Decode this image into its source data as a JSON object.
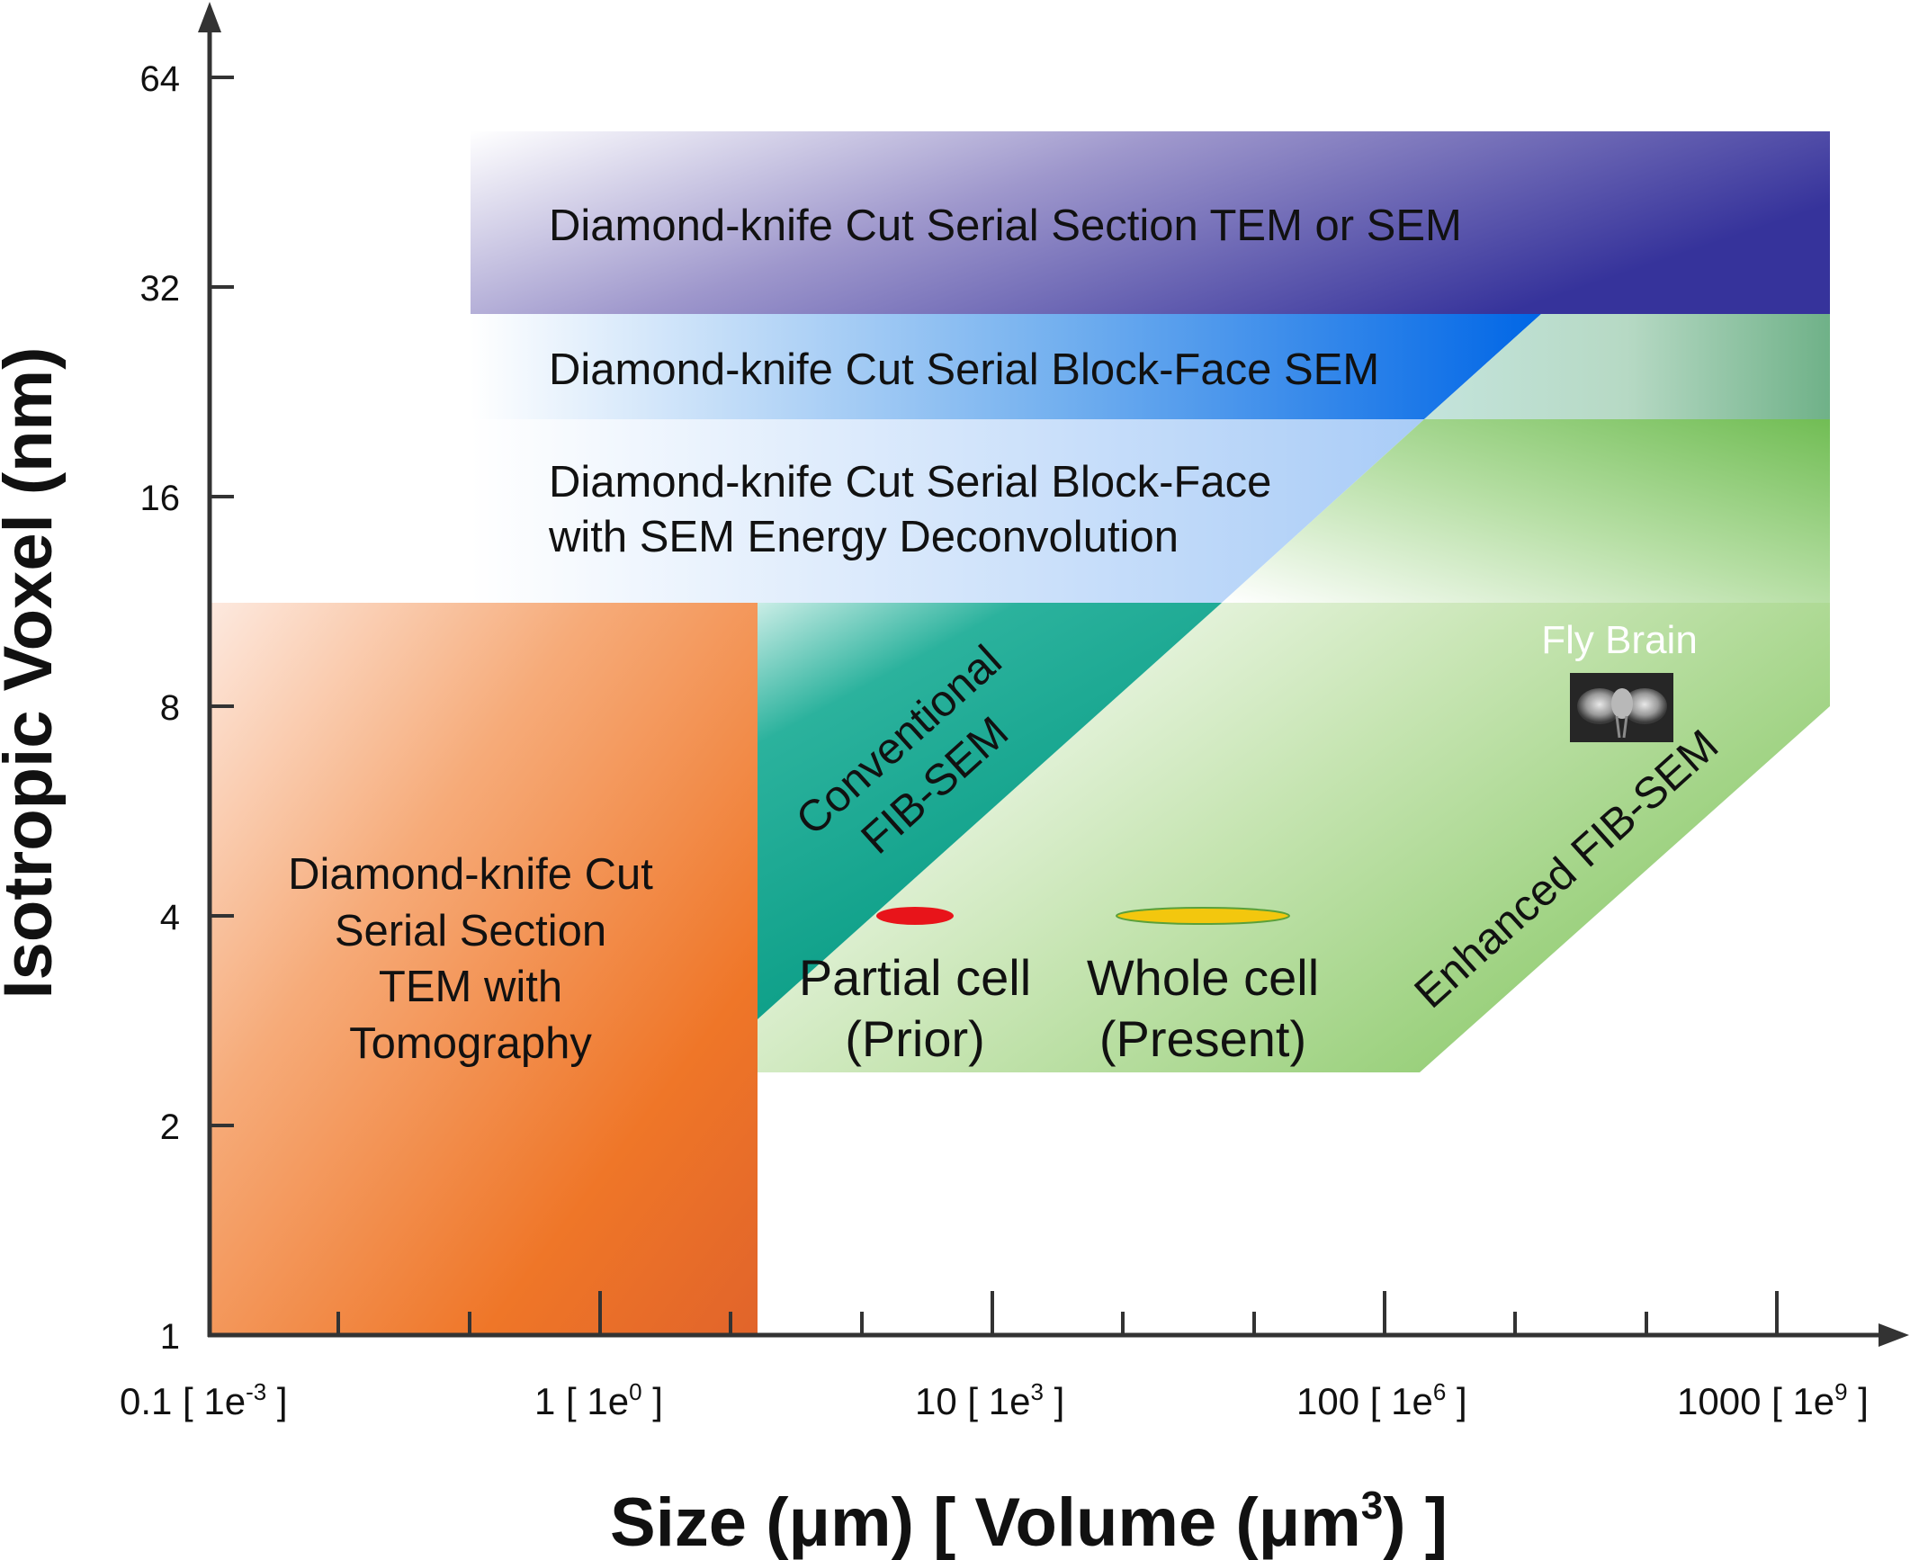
{
  "axes": {
    "y_title": "Isotropic Voxel (nm)",
    "x_title_main": "Size (μm) [ Volume (μm",
    "x_title_sup": "3",
    "x_title_end": ") ]",
    "y_ticks": [
      "64",
      "32",
      "16",
      "8",
      "4",
      "2",
      "1"
    ],
    "x_ticks": [
      {
        "main": "0.1 [ 1e",
        "sup": "-3",
        "end": " ]"
      },
      {
        "main": "1 [ 1e",
        "sup": "0",
        "end": " ]"
      },
      {
        "main": "10 [ 1e",
        "sup": "3",
        "end": " ]"
      },
      {
        "main": "100 [ 1e",
        "sup": "6",
        "end": " ]"
      },
      {
        "main": "1000 [ 1e",
        "sup": "9",
        "end": " ]"
      }
    ]
  },
  "regions": {
    "serial_section": "Diamond-knife Cut Serial Section TEM or SEM",
    "block_face": "Diamond-knife Cut Serial Block-Face SEM",
    "block_face_deconv_line1": "Diamond-knife Cut Serial Block-Face",
    "block_face_deconv_line2": "with SEM Energy Deconvolution",
    "tomography_line1": "Diamond-knife Cut",
    "tomography_line2": "Serial Section",
    "tomography_line3": "TEM with",
    "tomography_line4": "Tomography",
    "conventional_line1": "Conventional",
    "conventional_line2": "FIB-SEM",
    "enhanced": "Enhanced FIB-SEM"
  },
  "markers": {
    "partial_line1": "Partial cell",
    "partial_line2": "(Prior)",
    "whole_line1": "Whole cell",
    "whole_line2": "(Present)",
    "fly_brain": "Fly Brain"
  },
  "colors": {
    "orange": "#ee7326",
    "teal": "#009e8a",
    "green": "#8dc860",
    "blue": "#1a6fe0",
    "indigo": "#3b37a0",
    "partial_marker": "#e8141a",
    "whole_marker": "#f3c70e"
  }
}
